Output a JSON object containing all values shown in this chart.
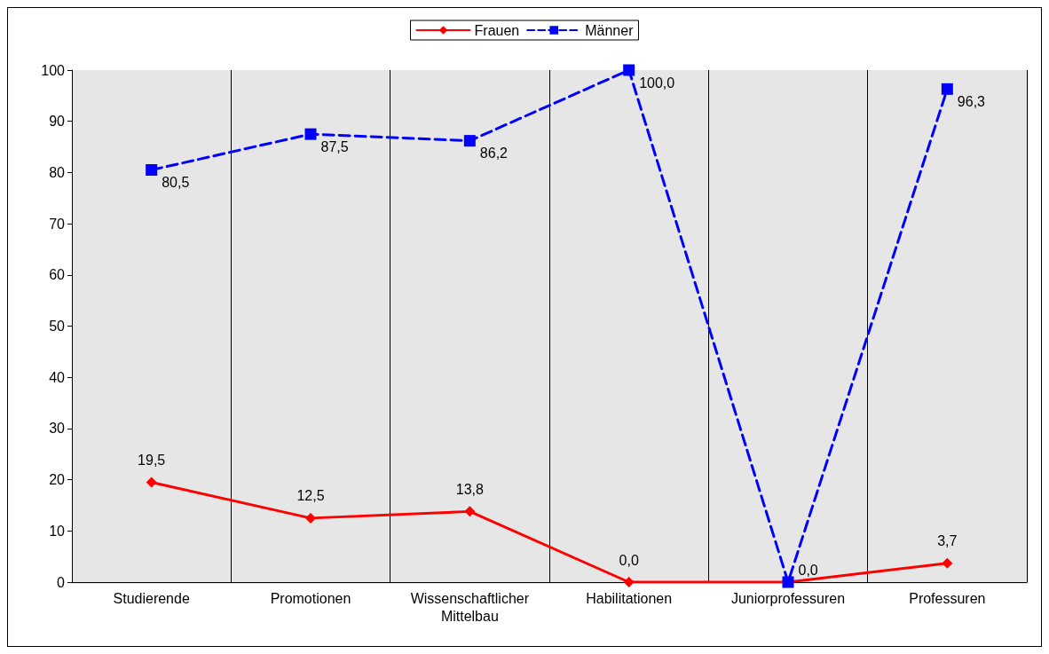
{
  "chart_data": {
    "type": "line",
    "categories": [
      "Studierende",
      "Promotionen",
      "Wissenschaftlicher\nMittelbau",
      "Habilitationen",
      "Juniorprofessuren",
      "Professuren"
    ],
    "series": [
      {
        "name": "Frauen",
        "color": "#ff0000",
        "marker": "diamond",
        "line_style": "solid",
        "values": [
          19.5,
          12.5,
          13.8,
          0,
          0,
          3.7
        ],
        "value_labels": [
          "19,5",
          "12,5",
          "13,8",
          "0,0",
          null,
          "3,7"
        ]
      },
      {
        "name": "Männer",
        "color": "#0000ff",
        "marker": "square",
        "line_style": "dashed",
        "values": [
          80.5,
          87.5,
          86.2,
          100,
          0,
          96.3
        ],
        "value_labels": [
          "80,5",
          "87,5",
          "86,2",
          "100,0",
          "0,0",
          "96,3"
        ]
      }
    ],
    "ylim": [
      0,
      100
    ],
    "yticks": [
      0,
      10,
      20,
      30,
      40,
      50,
      60,
      70,
      80,
      90,
      100
    ],
    "grid": "x",
    "legend": "top"
  }
}
